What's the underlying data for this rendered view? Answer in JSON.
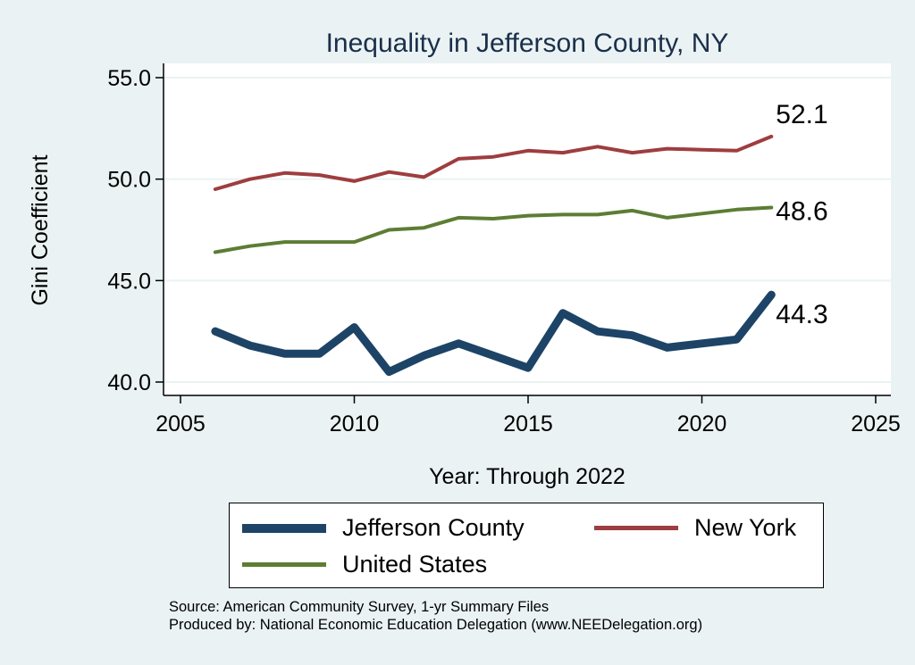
{
  "chart_data": {
    "type": "line",
    "title": "Inequality in Jefferson County, NY",
    "xlabel": "Year: Through 2022",
    "ylabel": "Gini Coefficient",
    "xlim": [
      2005,
      2025
    ],
    "ylim": [
      40.0,
      55.0
    ],
    "xticks": [
      2005,
      2010,
      2015,
      2020,
      2025
    ],
    "yticks": [
      40.0,
      45.0,
      50.0,
      55.0
    ],
    "ytick_labels": [
      "40.0",
      "45.0",
      "50.0",
      "55.0"
    ],
    "grid": true,
    "x": [
      2006,
      2007,
      2008,
      2009,
      2010,
      2011,
      2012,
      2013,
      2014,
      2015,
      2016,
      2017,
      2018,
      2019,
      2020,
      2021,
      2022
    ],
    "series": [
      {
        "name": "New York",
        "color": "#9e3d3f",
        "values": [
          49.5,
          50.0,
          50.3,
          50.2,
          49.9,
          50.35,
          50.1,
          51.0,
          51.1,
          51.4,
          51.3,
          51.6,
          51.3,
          51.5,
          51.45,
          51.4,
          52.1
        ],
        "end_label": "52.1"
      },
      {
        "name": "United States",
        "color": "#5c7d33",
        "values": [
          46.4,
          46.7,
          46.9,
          46.9,
          46.9,
          47.5,
          47.6,
          48.1,
          48.05,
          48.2,
          48.25,
          48.25,
          48.45,
          48.1,
          48.3,
          48.5,
          48.6
        ],
        "end_label": "48.6"
      },
      {
        "name": "Jefferson County",
        "color": "#1d4466",
        "values": [
          42.5,
          41.8,
          41.4,
          41.4,
          42.7,
          40.5,
          41.3,
          41.9,
          41.3,
          40.7,
          43.4,
          42.5,
          42.3,
          41.7,
          41.9,
          42.1,
          44.3
        ],
        "end_label": "44.3"
      }
    ],
    "legend": {
      "position": "bottom",
      "entries": [
        "Jefferson County",
        "New York",
        "United States"
      ]
    },
    "notes": [
      "Source: American Community Survey, 1-yr Summary Files",
      "Produced by: National Economic Education Delegation (www.NEEDelegation.org)"
    ]
  },
  "colors": {
    "background": "#eaf2f3",
    "plot_area": "#ffffff",
    "grid": "#eaf2f3",
    "title": "#1a2f4a"
  }
}
